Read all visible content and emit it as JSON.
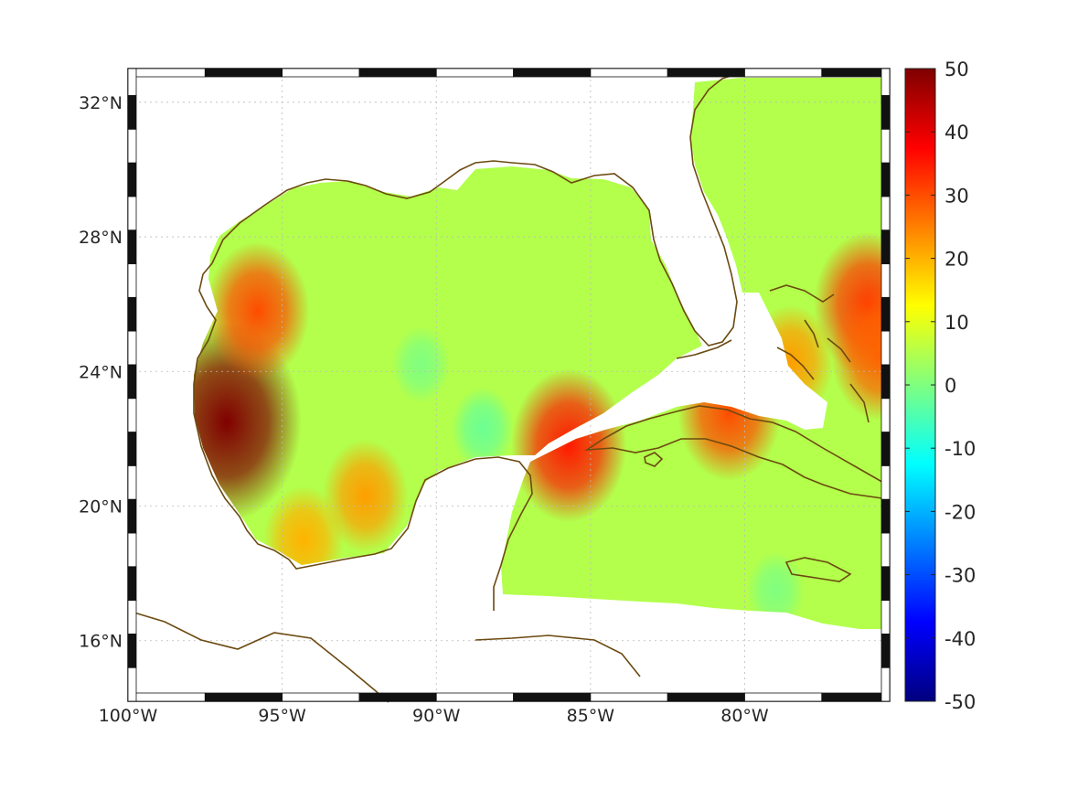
{
  "map": {
    "region": "Gulf of Mexico and Caribbean",
    "lon_range": [
      -100,
      -75.3
    ],
    "lat_range": [
      14.2,
      33
    ],
    "lon_ticks": [
      {
        "value": -100,
        "label": "100°W"
      },
      {
        "value": -95,
        "label": "95°W"
      },
      {
        "value": -90,
        "label": "90°W"
      },
      {
        "value": -85,
        "label": "85°W"
      },
      {
        "value": -80,
        "label": "80°W"
      }
    ],
    "lat_ticks": [
      {
        "value": 32,
        "label": "32°N"
      },
      {
        "value": 28,
        "label": "28°N"
      },
      {
        "value": 24,
        "label": "24°N"
      },
      {
        "value": 20,
        "label": "20°N"
      },
      {
        "value": 16,
        "label": "16°N"
      }
    ],
    "grid": true,
    "coastline_color": "#6b4a10",
    "colorbar": {
      "colormap": "jet",
      "min": -50,
      "max": 50,
      "ticks": [
        {
          "value": 50,
          "label": "50"
        },
        {
          "value": 40,
          "label": "40"
        },
        {
          "value": 30,
          "label": "30"
        },
        {
          "value": 20,
          "label": "20"
        },
        {
          "value": 10,
          "label": "10"
        },
        {
          "value": 0,
          "label": "0"
        },
        {
          "value": -10,
          "label": "-10"
        },
        {
          "value": -20,
          "label": "-20"
        },
        {
          "value": -30,
          "label": "-30"
        },
        {
          "value": -40,
          "label": "-40"
        },
        {
          "value": -50,
          "label": "-50"
        }
      ]
    },
    "field": {
      "background_value": 5,
      "features": [
        {
          "name": "western-gulf-maximum",
          "lon": -96.8,
          "lat": 22.5,
          "value": 50
        },
        {
          "name": "bay-of-campeche-high",
          "lon": -92.3,
          "lat": 20.3,
          "value": 22
        },
        {
          "name": "campeche-south-high",
          "lon": -94.3,
          "lat": 19.0,
          "value": 20
        },
        {
          "name": "texas-shelf-high",
          "lon": -95.8,
          "lat": 25.8,
          "value": 30
        },
        {
          "name": "yucatan-channel-high",
          "lon": -85.7,
          "lat": 21.8,
          "value": 35
        },
        {
          "name": "cuba-north-coast-high",
          "lon": -80.5,
          "lat": 22.8,
          "value": 30
        },
        {
          "name": "bahamas-high",
          "lon": -76.0,
          "lat": 26.0,
          "value": 32
        },
        {
          "name": "east-bahamas-high",
          "lon": -75.6,
          "lat": 24.5,
          "value": 28
        },
        {
          "name": "florida-straits-high",
          "lon": -78.5,
          "lat": 24.3,
          "value": 22
        },
        {
          "name": "central-gulf-low",
          "lon": -90.5,
          "lat": 24.2,
          "value": 0
        },
        {
          "name": "yucatan-north-low",
          "lon": -88.5,
          "lat": 22.3,
          "value": -2
        },
        {
          "name": "caribbean-south-low",
          "lon": -79.0,
          "lat": 17.5,
          "value": 0
        }
      ]
    }
  }
}
